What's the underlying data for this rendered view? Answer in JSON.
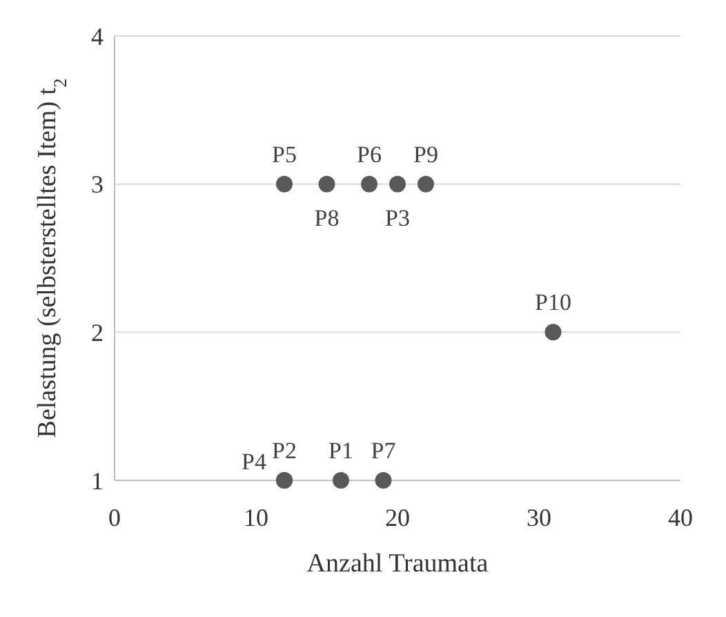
{
  "chart_data": {
    "type": "scatter",
    "xlabel": "Anzahl Traumata",
    "ylabel": "Belastung (selbsterstelltes Item) t$_{2}$",
    "series": [
      {
        "color": "#595959",
        "x": [
          16,
          12,
          20,
          12,
          12,
          18,
          19,
          15,
          22,
          31
        ],
        "values": [
          1,
          1,
          3,
          1,
          3,
          3,
          1,
          3,
          3,
          2
        ],
        "value_labels": [
          "P1",
          "P2",
          "P3",
          "P4",
          "P5",
          "P6",
          "P7",
          "P8",
          "P9",
          "P10"
        ]
      }
    ],
    "xlim": [
      0,
      40
    ],
    "xticks": [
      0,
      10,
      20,
      30,
      40
    ],
    "ylim": [
      1,
      4
    ],
    "yticks": [
      1,
      2,
      3,
      4
    ],
    "grid": "y",
    "marker": "circle"
  }
}
